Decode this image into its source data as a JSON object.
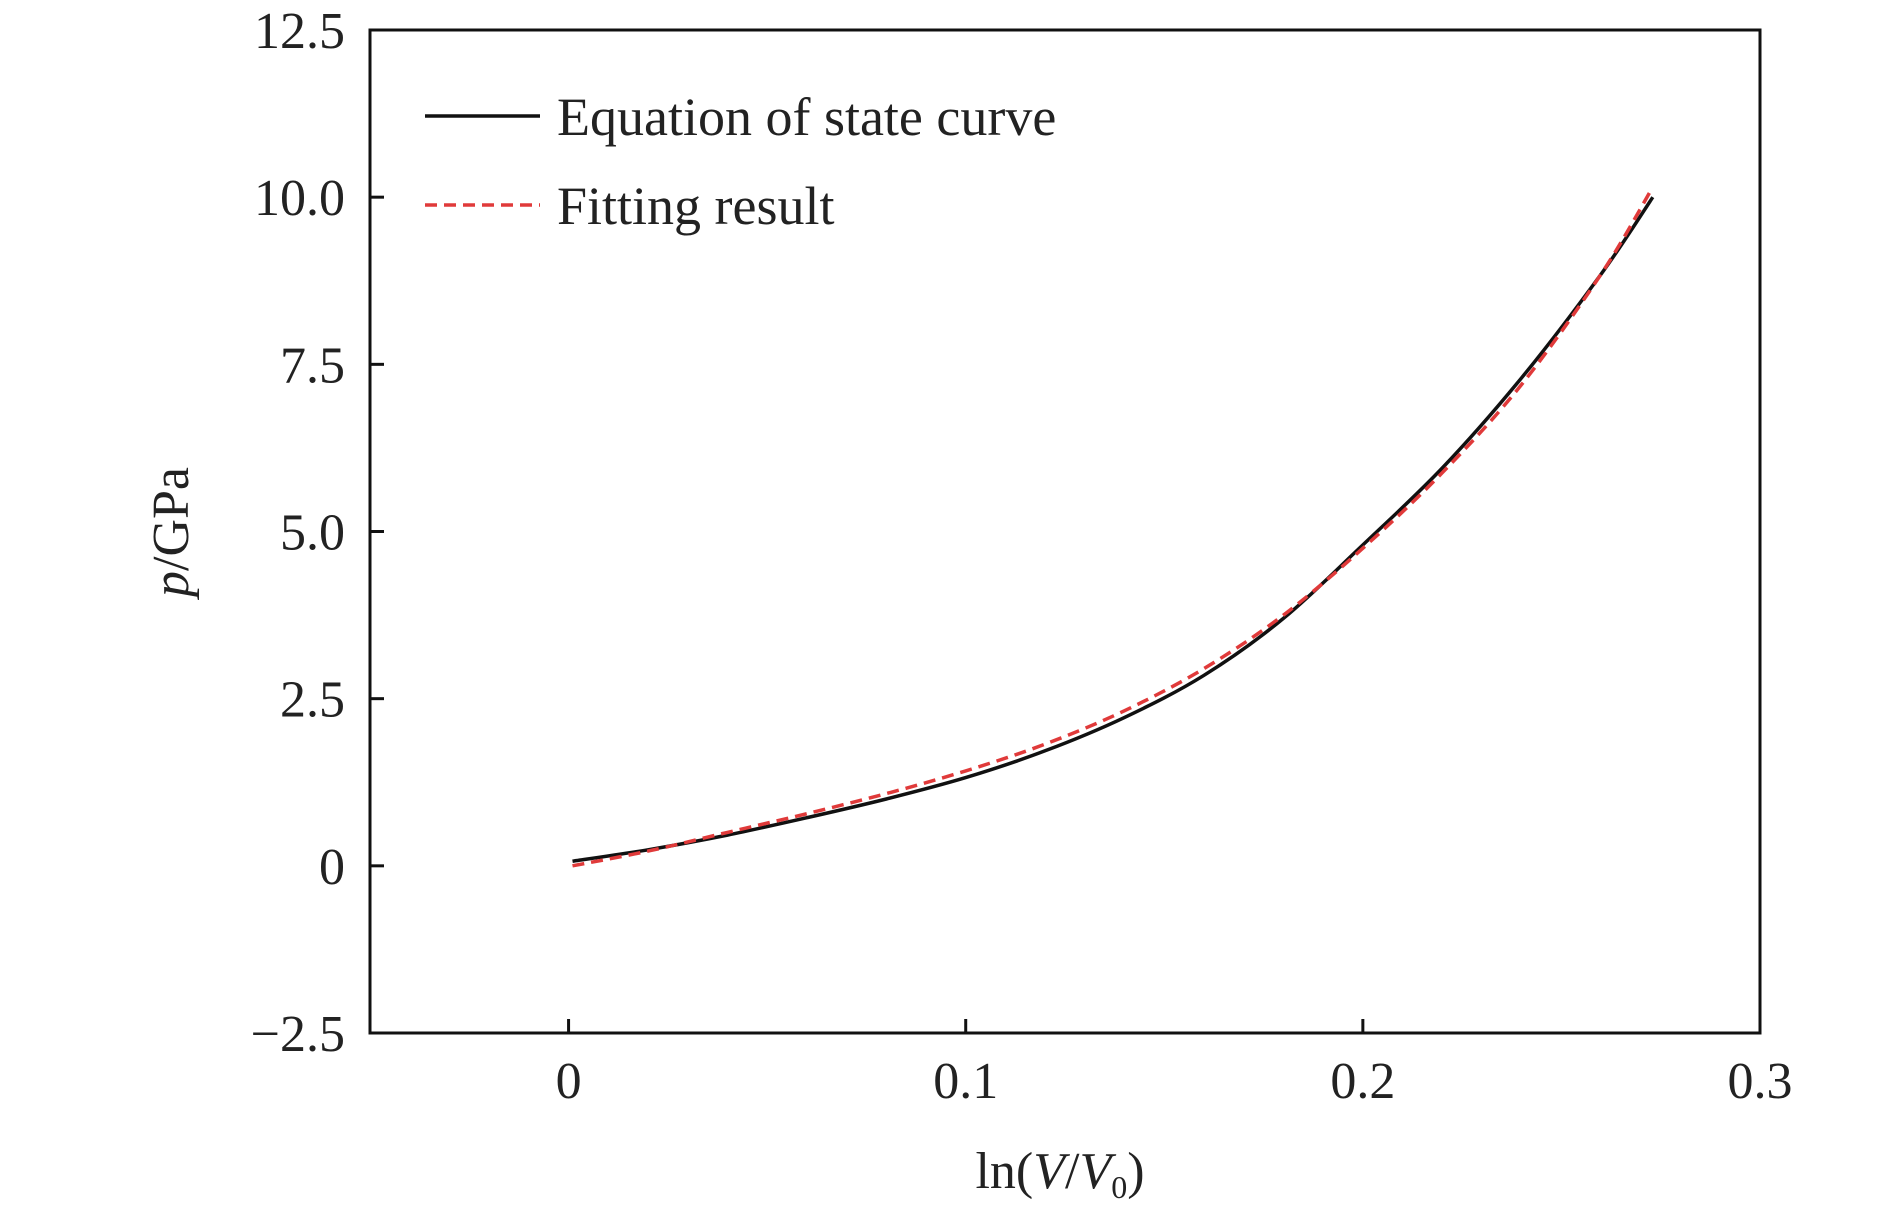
{
  "chart_data": {
    "type": "line",
    "title": "",
    "xlabel": {
      "prefix": "ln(",
      "v": "V",
      "slash": "/",
      "v0": "V",
      "sub": "0",
      "suffix": ")"
    },
    "ylabel": {
      "italic": "p",
      "rest": "/GPa"
    },
    "xlim": [
      -0.05,
      0.3
    ],
    "ylim": [
      -2.5,
      12.5
    ],
    "xticks": [
      0,
      0.1,
      0.2,
      0.3
    ],
    "xtick_labels": [
      "0",
      "0.1",
      "0.2",
      "0.3"
    ],
    "yticks": [
      -2.5,
      0,
      2.5,
      5.0,
      7.5,
      10.0,
      12.5
    ],
    "ytick_labels": [
      "−2.5",
      "0",
      "2.5",
      "5.0",
      "7.5",
      "10.0",
      "12.5"
    ],
    "grid": false,
    "legend_position": "top-left",
    "series": [
      {
        "name": "Equation of state curve",
        "style": "solid",
        "color": "#111111",
        "x": [
          0.001,
          0.02,
          0.04,
          0.06,
          0.08,
          0.1,
          0.12,
          0.14,
          0.16,
          0.18,
          0.2,
          0.22,
          0.24,
          0.26,
          0.273
        ],
        "y": [
          0.07,
          0.24,
          0.46,
          0.72,
          1.0,
          1.32,
          1.72,
          2.22,
          2.85,
          3.7,
          4.8,
          5.95,
          7.3,
          8.85,
          10.0
        ]
      },
      {
        "name": "Fitting result",
        "style": "dashed",
        "color": "#e03a3a",
        "x": [
          0.001,
          0.02,
          0.04,
          0.06,
          0.08,
          0.1,
          0.12,
          0.14,
          0.16,
          0.18,
          0.2,
          0.22,
          0.24,
          0.26,
          0.273
        ],
        "y": [
          0.0,
          0.22,
          0.5,
          0.78,
          1.08,
          1.42,
          1.82,
          2.32,
          2.95,
          3.75,
          4.75,
          5.88,
          7.2,
          8.85,
          10.15
        ]
      }
    ]
  }
}
